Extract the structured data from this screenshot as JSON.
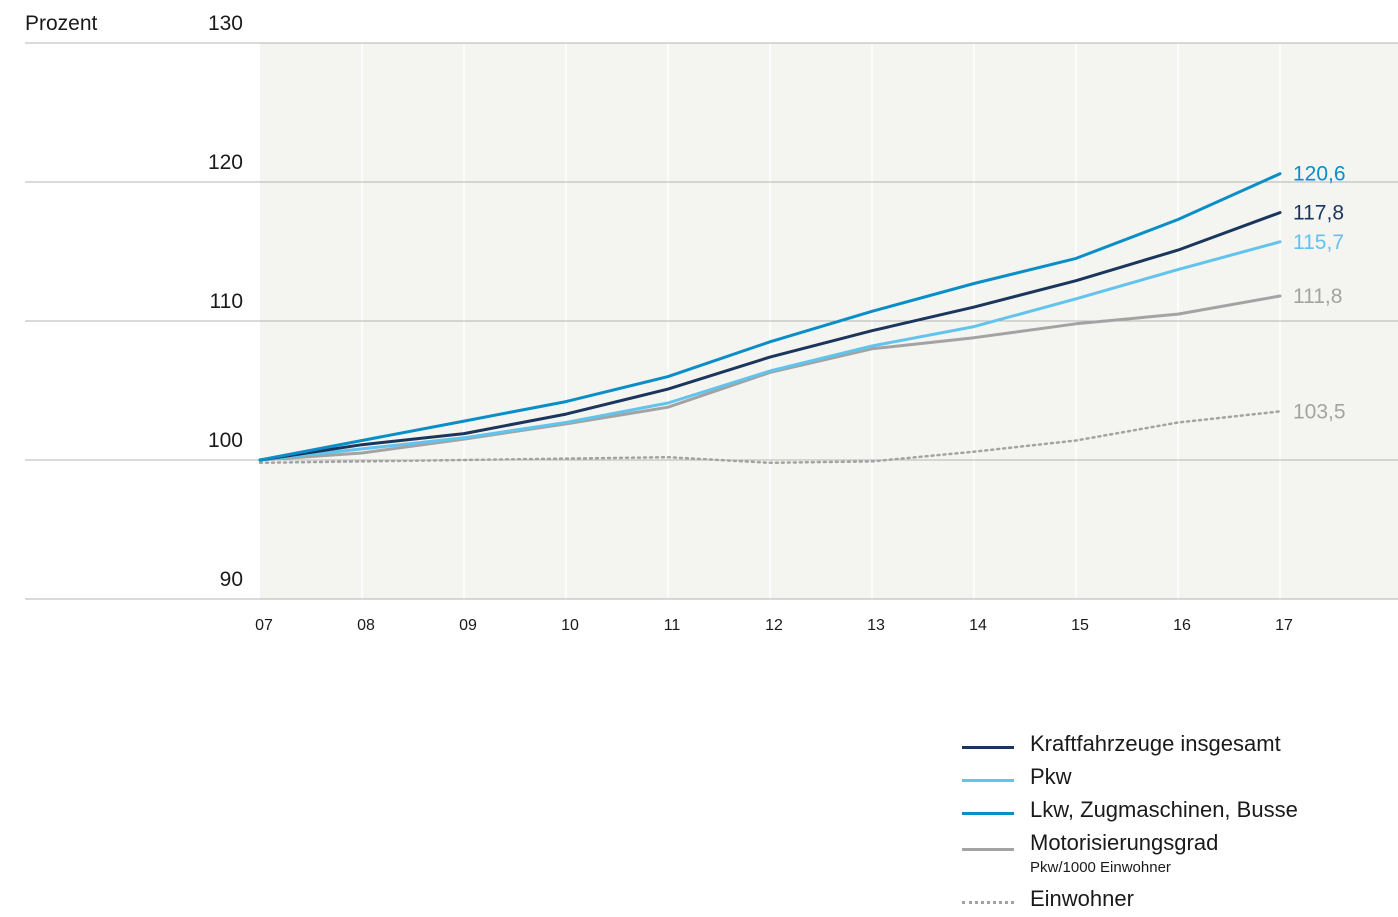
{
  "chart_data": {
    "type": "line",
    "unit_label": "Prozent",
    "x": [
      "07",
      "08",
      "09",
      "10",
      "11",
      "12",
      "13",
      "14",
      "15",
      "16",
      "17"
    ],
    "ylim": [
      90,
      130
    ],
    "yticks": [
      90,
      100,
      110,
      120,
      130
    ],
    "grid": "horizontal",
    "legend_placement": "bottom-right",
    "series": [
      {
        "name": "Lkw, Zugmaschinen, Busse",
        "color": "#0a8ec8",
        "style": "solid",
        "values": [
          100.0,
          101.4,
          102.8,
          104.2,
          106.0,
          108.5,
          110.7,
          112.7,
          114.5,
          117.3,
          120.6
        ],
        "end_label": "120,6"
      },
      {
        "name": "Kraftfahrzeuge insgesamt",
        "color": "#1b365d",
        "style": "solid",
        "values": [
          100.0,
          101.1,
          101.9,
          103.3,
          105.1,
          107.4,
          109.3,
          111.0,
          112.9,
          115.1,
          117.8
        ],
        "end_label": "117,8"
      },
      {
        "name": "Pkw",
        "color": "#62c3ec",
        "style": "solid",
        "values": [
          100.0,
          100.8,
          101.6,
          102.7,
          104.1,
          106.4,
          108.2,
          109.6,
          111.6,
          113.7,
          115.7
        ],
        "end_label": "115,7"
      },
      {
        "name": "Motorisierungsgrad",
        "subtitle": "Pkw/1000 Einwohner",
        "color": "#a3a3a3",
        "style": "solid",
        "values": [
          100.0,
          100.5,
          101.5,
          102.6,
          103.8,
          106.3,
          108.0,
          108.8,
          109.8,
          110.5,
          111.8
        ],
        "end_label": "111,8"
      },
      {
        "name": "Einwohner",
        "color": "#a3a3a3",
        "style": "dotted",
        "values": [
          99.8,
          99.9,
          100.0,
          100.1,
          100.2,
          99.8,
          99.9,
          100.6,
          101.4,
          102.7,
          103.5
        ],
        "end_label": "103,5"
      }
    ],
    "legend_order": [
      "Kraftfahrzeuge insgesamt",
      "Pkw",
      "Lkw, Zugmaschinen, Busse",
      "Motorisierungsgrad",
      "Einwohner"
    ]
  }
}
